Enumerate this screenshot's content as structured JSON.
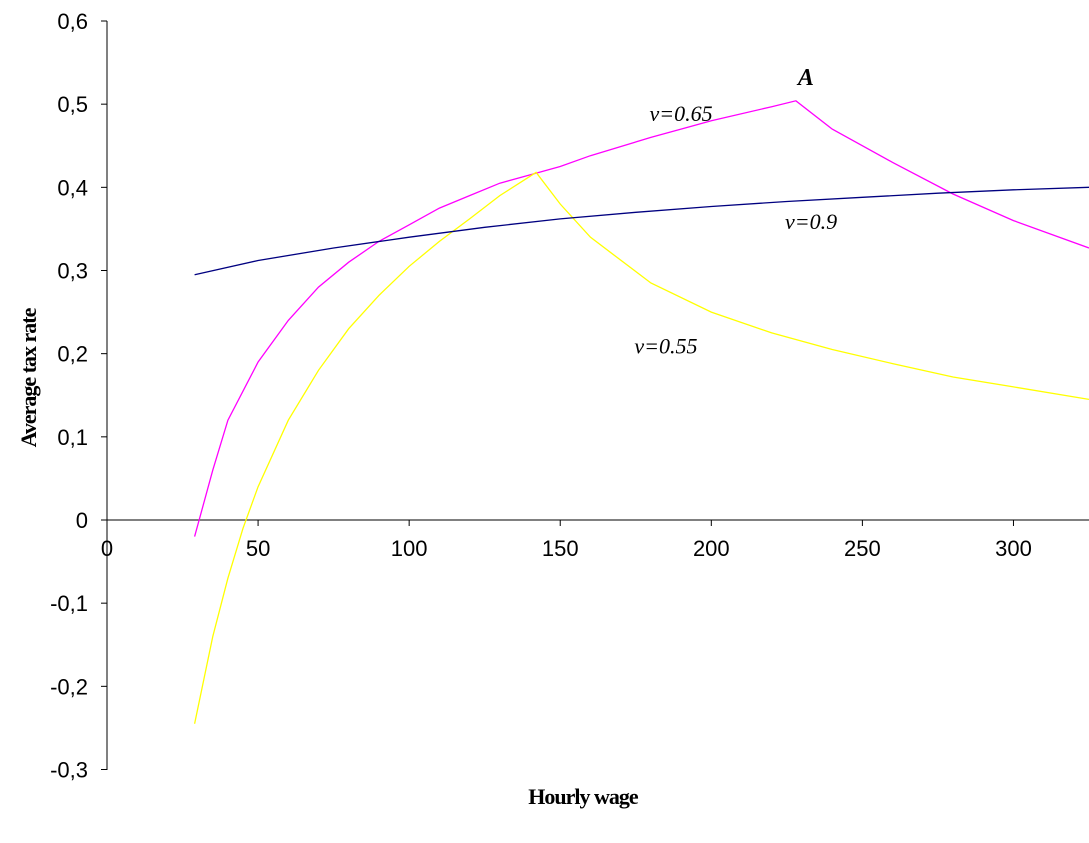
{
  "chart_data": {
    "type": "line",
    "title": "",
    "xlabel": "Hourly wage",
    "ylabel": "Average tax rate",
    "xlim": [
      0,
      325
    ],
    "ylim": [
      -0.3,
      0.6
    ],
    "x_ticks": [
      "0",
      "50",
      "100",
      "150",
      "200",
      "250",
      "300"
    ],
    "y_ticks": [
      "-0,3",
      "-0,2",
      "-0,1",
      "0",
      "0,1",
      "0,2",
      "0,3",
      "0,4",
      "0,5",
      "0,6"
    ],
    "grid": false,
    "legend": "none",
    "series": [
      {
        "name": "v=0.65",
        "color": "#ff00ff",
        "x": [
          29,
          35,
          40,
          50,
          60,
          70,
          80,
          90,
          100,
          110,
          120,
          130,
          140,
          150,
          160,
          180,
          200,
          220,
          228,
          240,
          260,
          280,
          300,
          325
        ],
        "y": [
          -0.02,
          0.06,
          0.12,
          0.19,
          0.24,
          0.28,
          0.31,
          0.335,
          0.355,
          0.375,
          0.39,
          0.405,
          0.415,
          0.425,
          0.438,
          0.46,
          0.48,
          0.497,
          0.504,
          0.47,
          0.43,
          0.392,
          0.36,
          0.327
        ]
      },
      {
        "name": "v=0.55",
        "color": "#ffff00",
        "x": [
          29,
          35,
          40,
          45,
          50,
          60,
          70,
          80,
          90,
          100,
          110,
          120,
          130,
          142,
          150,
          160,
          180,
          200,
          220,
          240,
          260,
          280,
          300,
          325
        ],
        "y": [
          -0.245,
          -0.14,
          -0.07,
          -0.01,
          0.04,
          0.12,
          0.18,
          0.23,
          0.27,
          0.305,
          0.335,
          0.362,
          0.39,
          0.418,
          0.38,
          0.34,
          0.285,
          0.25,
          0.225,
          0.205,
          0.188,
          0.172,
          0.16,
          0.145
        ]
      },
      {
        "name": "v=0.9",
        "color": "#000080",
        "x": [
          29,
          50,
          75,
          100,
          125,
          150,
          175,
          200,
          225,
          250,
          275,
          300,
          325
        ],
        "y": [
          0.295,
          0.312,
          0.327,
          0.34,
          0.352,
          0.362,
          0.37,
          0.377,
          0.383,
          0.388,
          0.393,
          0.397,
          0.4
        ]
      }
    ],
    "annotations": [
      {
        "text": "v=0.65",
        "series": "v=0.65",
        "x": 190,
        "y": 0.48
      },
      {
        "text": "A",
        "series": "v=0.65",
        "x": 228,
        "y": 0.504
      },
      {
        "text": "v=0.9",
        "series": "v=0.9",
        "x": 233,
        "y": 0.35
      },
      {
        "text": "v=0.55",
        "series": "v=0.55",
        "x": 185,
        "y": 0.2
      }
    ]
  }
}
